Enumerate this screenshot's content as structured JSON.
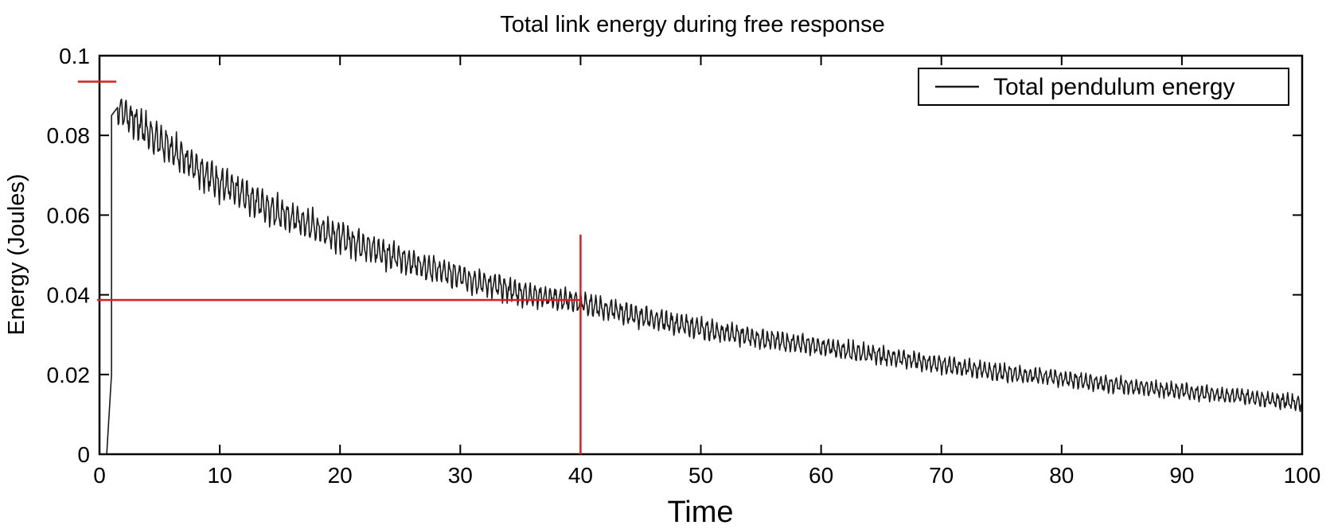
{
  "chart_data": {
    "type": "line",
    "title": "Total link energy during free response",
    "xlabel": "Time",
    "ylabel": "Energy (Joules)",
    "xlim": [
      0,
      100
    ],
    "ylim": [
      0,
      0.1
    ],
    "xticks": [
      0,
      10,
      20,
      30,
      40,
      50,
      60,
      70,
      80,
      90,
      100
    ],
    "xtick_labels": [
      "0",
      "10",
      "20",
      "30",
      "40",
      "50",
      "60",
      "70",
      "80",
      "90",
      "100"
    ],
    "yticks": [
      0,
      0.02,
      0.04,
      0.06,
      0.08,
      0.1
    ],
    "ytick_labels": [
      "0",
      "0.02",
      "0.04",
      "0.06",
      "0.08",
      "0.1"
    ],
    "grid": false,
    "legend_position": "top-right",
    "series": [
      {
        "name": "Total pendulum energy",
        "color": "#1a1a1a",
        "points": [
          [
            0.0,
            0.0
          ],
          [
            0.6,
            0.0
          ],
          [
            1.0,
            0.02
          ],
          [
            1.0,
            0.085
          ],
          [
            1.5,
            0.087
          ],
          [
            5,
            0.0785
          ],
          [
            10,
            0.068
          ],
          [
            15,
            0.0605
          ],
          [
            20,
            0.0545
          ],
          [
            25,
            0.049
          ],
          [
            30,
            0.0445
          ],
          [
            35,
            0.0405
          ],
          [
            40,
            0.038
          ],
          [
            45,
            0.0345
          ],
          [
            50,
            0.0315
          ],
          [
            55,
            0.029
          ],
          [
            60,
            0.027
          ],
          [
            65,
            0.0248
          ],
          [
            70,
            0.0225
          ],
          [
            75,
            0.0205
          ],
          [
            80,
            0.019
          ],
          [
            85,
            0.0172
          ],
          [
            90,
            0.0158
          ],
          [
            95,
            0.0145
          ],
          [
            100,
            0.0128
          ]
        ],
        "oscillation_amplitude": [
          [
            1.5,
            0.0045
          ],
          [
            10,
            0.0045
          ],
          [
            30,
            0.0035
          ],
          [
            40,
            0.003
          ],
          [
            60,
            0.0025
          ],
          [
            80,
            0.0022
          ],
          [
            100,
            0.002
          ]
        ]
      }
    ],
    "annotation_lines": {
      "color": "#e41a1c",
      "segments": [
        {
          "x": [
            -1.8,
            1.4
          ],
          "y": [
            0.0935,
            0.0935
          ]
        },
        {
          "x": [
            -0.2,
            40
          ],
          "y": [
            0.0387,
            0.0387
          ]
        },
        {
          "x": [
            40,
            40
          ],
          "y": [
            0.0,
            0.0551
          ]
        }
      ]
    }
  }
}
